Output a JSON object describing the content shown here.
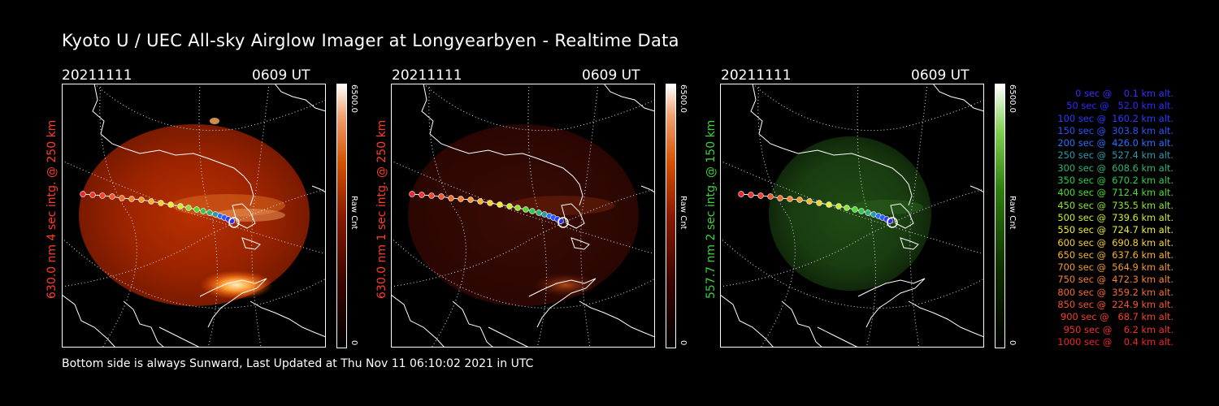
{
  "header": {
    "title": "Kyoto U / UEC All-sky Airglow Imager at Longyearbyen - Realtime Data"
  },
  "footer": {
    "text": "Bottom side is always Sunward, Last Updated at Thu Nov 11 06:10:02 2021 in UTC"
  },
  "panels": [
    {
      "date": "20211111",
      "time": "0609 UT",
      "label": "630.0 nm 4 sec intg. @ 250 km",
      "label_color": "#ff3c28",
      "colorbar": {
        "max": "6500.0",
        "min": "0",
        "unit": "Raw Cnt",
        "scheme": "red"
      }
    },
    {
      "date": "20211111",
      "time": "0609 UT",
      "label": "630.0 nm 1 sec intg. @ 250 km",
      "label_color": "#ff3c28",
      "colorbar": {
        "max": "6500.0",
        "min": "0",
        "unit": "Raw Cnt",
        "scheme": "red"
      }
    },
    {
      "date": "20211111",
      "time": "0609 UT",
      "label": "557.7 nm 2 sec intg. @ 150 km",
      "label_color": "#3cd23c",
      "colorbar": {
        "max": "6500.0",
        "min": "0",
        "unit": "Raw Cnt",
        "scheme": "green"
      }
    }
  ],
  "legend": [
    {
      "text": "   0 sec @    0.1 km alt.",
      "color": "#3a2cff"
    },
    {
      "text": "  50 sec @   52.0 km alt.",
      "color": "#2a2cff"
    },
    {
      "text": " 100 sec @  160.2 km alt.",
      "color": "#2a3cff"
    },
    {
      "text": " 150 sec @  303.8 km alt.",
      "color": "#2a55ff"
    },
    {
      "text": " 200 sec @  426.0 km alt.",
      "color": "#2a70ff"
    },
    {
      "text": " 250 sec @  527.4 km alt.",
      "color": "#2a9aaa"
    },
    {
      "text": " 300 sec @  608.6 km alt.",
      "color": "#2ab47a"
    },
    {
      "text": " 350 sec @  670.2 km alt.",
      "color": "#2acd4a"
    },
    {
      "text": " 400 sec @  712.4 km alt.",
      "color": "#4ade2a"
    },
    {
      "text": " 450 sec @  735.5 km alt.",
      "color": "#8ae62a"
    },
    {
      "text": " 500 sec @  739.6 km alt.",
      "color": "#c8ee2a"
    },
    {
      "text": " 550 sec @  724.7 km alt.",
      "color": "#eeee2a"
    },
    {
      "text": " 600 sec @  690.8 km alt.",
      "color": "#f5d22a"
    },
    {
      "text": " 650 sec @  637.6 km alt.",
      "color": "#f5b42a"
    },
    {
      "text": " 700 sec @  564.9 km alt.",
      "color": "#f59a2a"
    },
    {
      "text": " 750 sec @  472.3 km alt.",
      "color": "#f5822a"
    },
    {
      "text": " 800 sec @  359.2 km alt.",
      "color": "#f56a2a"
    },
    {
      "text": " 850 sec @  224.9 km alt.",
      "color": "#f5552a"
    },
    {
      "text": " 900 sec @   68.7 km alt.",
      "color": "#f5402a"
    },
    {
      "text": " 950 sec @    6.2 km alt.",
      "color": "#f5302a"
    },
    {
      "text": "1000 sec @    0.4 km alt.",
      "color": "#f5202a"
    }
  ]
}
